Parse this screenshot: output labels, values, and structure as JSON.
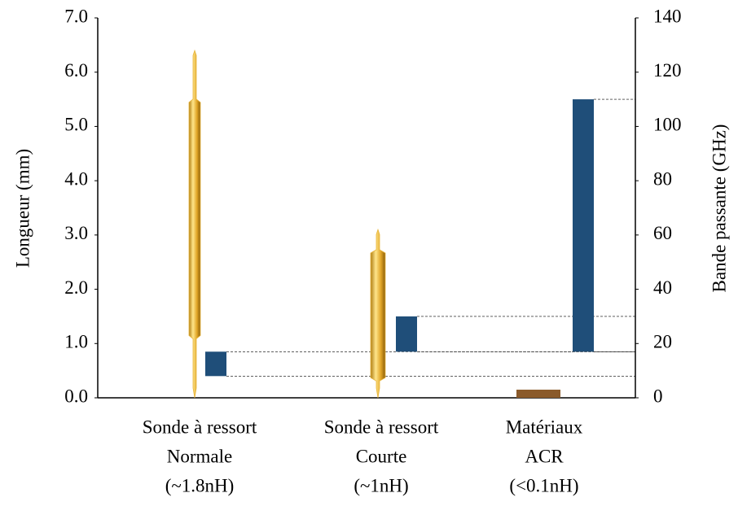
{
  "chart_data": {
    "type": "probe-bandwidth",
    "categories": [
      [
        "Sonde à ressort",
        "Normale",
        "(~1.8nH)"
      ],
      [
        "Sonde à ressort",
        "Courte",
        "(~1nH)"
      ],
      [
        "Matériaux",
        "ACR",
        "(<0.1nH)"
      ]
    ],
    "ylabel": "Longueur (mm)",
    "y2label": "Bande passante (GHz)",
    "ylim": [
      0,
      7
    ],
    "yticks": [
      {
        "value": 0,
        "label": "0.0"
      },
      {
        "value": 1,
        "label": "1.0"
      },
      {
        "value": 2,
        "label": "2.0"
      },
      {
        "value": 3,
        "label": "3.0"
      },
      {
        "value": 4,
        "label": "4.0"
      },
      {
        "value": 5,
        "label": "5.0"
      },
      {
        "value": 6,
        "label": "6.0"
      },
      {
        "value": 7,
        "label": "7.0"
      }
    ],
    "y2lim": [
      0,
      140
    ],
    "y2ticks": [
      0,
      20,
      40,
      60,
      80,
      100,
      120,
      140
    ],
    "lengths": [
      6.4,
      3.1,
      0.15
    ],
    "length_colors": [
      "#e8b53a",
      "#e8b53a",
      "#8a5a2b"
    ],
    "bandwidth_low": [
      8,
      17,
      17
    ],
    "bandwidth_high": [
      17,
      30,
      110
    ],
    "bandwidth_color": "#1f4e79"
  }
}
